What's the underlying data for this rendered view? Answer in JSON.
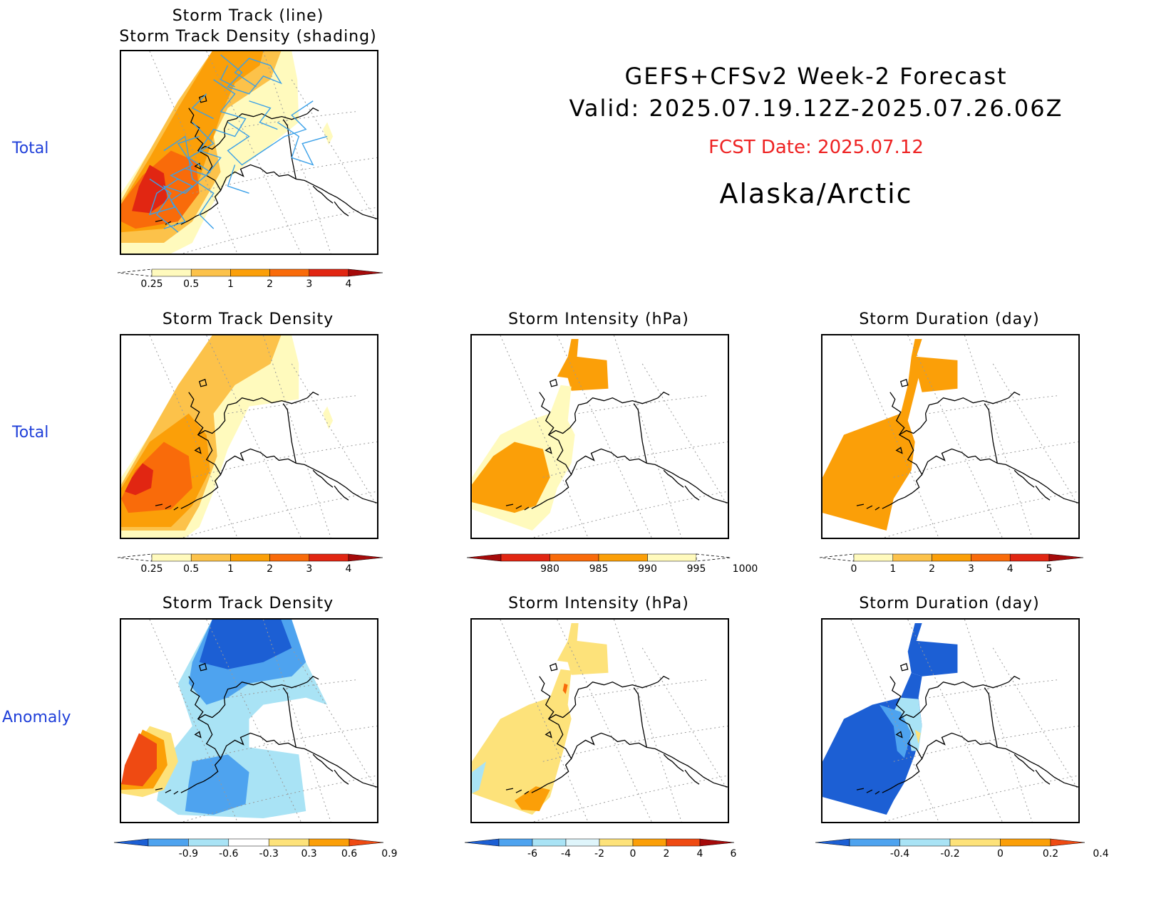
{
  "header": {
    "title": "GEFS+CFSv2 Week-2 Forecast",
    "valid": "Valid: 2025.07.19.12Z-2025.07.26.06Z",
    "fcst_date": "FCST Date: 2025.07.12",
    "region": "Alaska/Arctic"
  },
  "row_labels": [
    "Total",
    "Total",
    "Anomaly"
  ],
  "panels": {
    "top": {
      "title_line1": "Storm Track (line)",
      "title_line2": "Storm Track Density (shading)"
    },
    "density_total": {
      "title": "Storm Track Density"
    },
    "intensity_total": {
      "title": "Storm Intensity (hPa)"
    },
    "duration_total": {
      "title": "Storm Duration (day)"
    },
    "density_anom": {
      "title": "Storm Track Density"
    },
    "intensity_anom": {
      "title": "Storm Intensity (hPa)"
    },
    "duration_anom": {
      "title": "Storm Duration (day)"
    }
  },
  "colorbars": {
    "density": {
      "ticks": [
        "0.25",
        "0.5",
        "1",
        "2",
        "3",
        "4"
      ],
      "colors": [
        "#fffabd",
        "#fcc24a",
        "#fb9f08",
        "#f96b0a",
        "#e12612",
        "#a50a0a"
      ]
    },
    "intensity": {
      "ticks": [
        "980",
        "985",
        "990",
        "995",
        "1000"
      ],
      "colors": [
        "#a50a0a",
        "#e12612",
        "#f96b0a",
        "#fb9f08",
        "#fffabd"
      ]
    },
    "duration": {
      "ticks": [
        "0",
        "1",
        "2",
        "3",
        "4",
        "5"
      ],
      "colors": [
        "#fffabd",
        "#fcc24a",
        "#fb9f08",
        "#f96b0a",
        "#e12612",
        "#a50a0a"
      ]
    },
    "density_anom": {
      "ticks": [
        "-0.9",
        "-0.6",
        "-0.3",
        "0.3",
        "0.6",
        "0.9"
      ],
      "colors": [
        "#1c5fd4",
        "#4ea3ef",
        "#a9e3f5",
        "#ffffff",
        "#fde27a",
        "#fb9f08",
        "#ef4a12"
      ]
    },
    "intensity_anom": {
      "ticks": [
        "-6",
        "-4",
        "-2",
        "0",
        "2",
        "4",
        "6"
      ],
      "colors": [
        "#1c5fd4",
        "#4ea3ef",
        "#a9e3f5",
        "#dff5fb",
        "#fde27a",
        "#fb9f08",
        "#ef4a12",
        "#a50a0a"
      ]
    },
    "duration_anom": {
      "ticks": [
        "-0.4",
        "-0.2",
        "0",
        "0.2",
        "0.4"
      ],
      "colors": [
        "#1c5fd4",
        "#4ea3ef",
        "#a9e3f5",
        "#fde27a",
        "#fb9f08",
        "#ef4a12"
      ]
    }
  }
}
